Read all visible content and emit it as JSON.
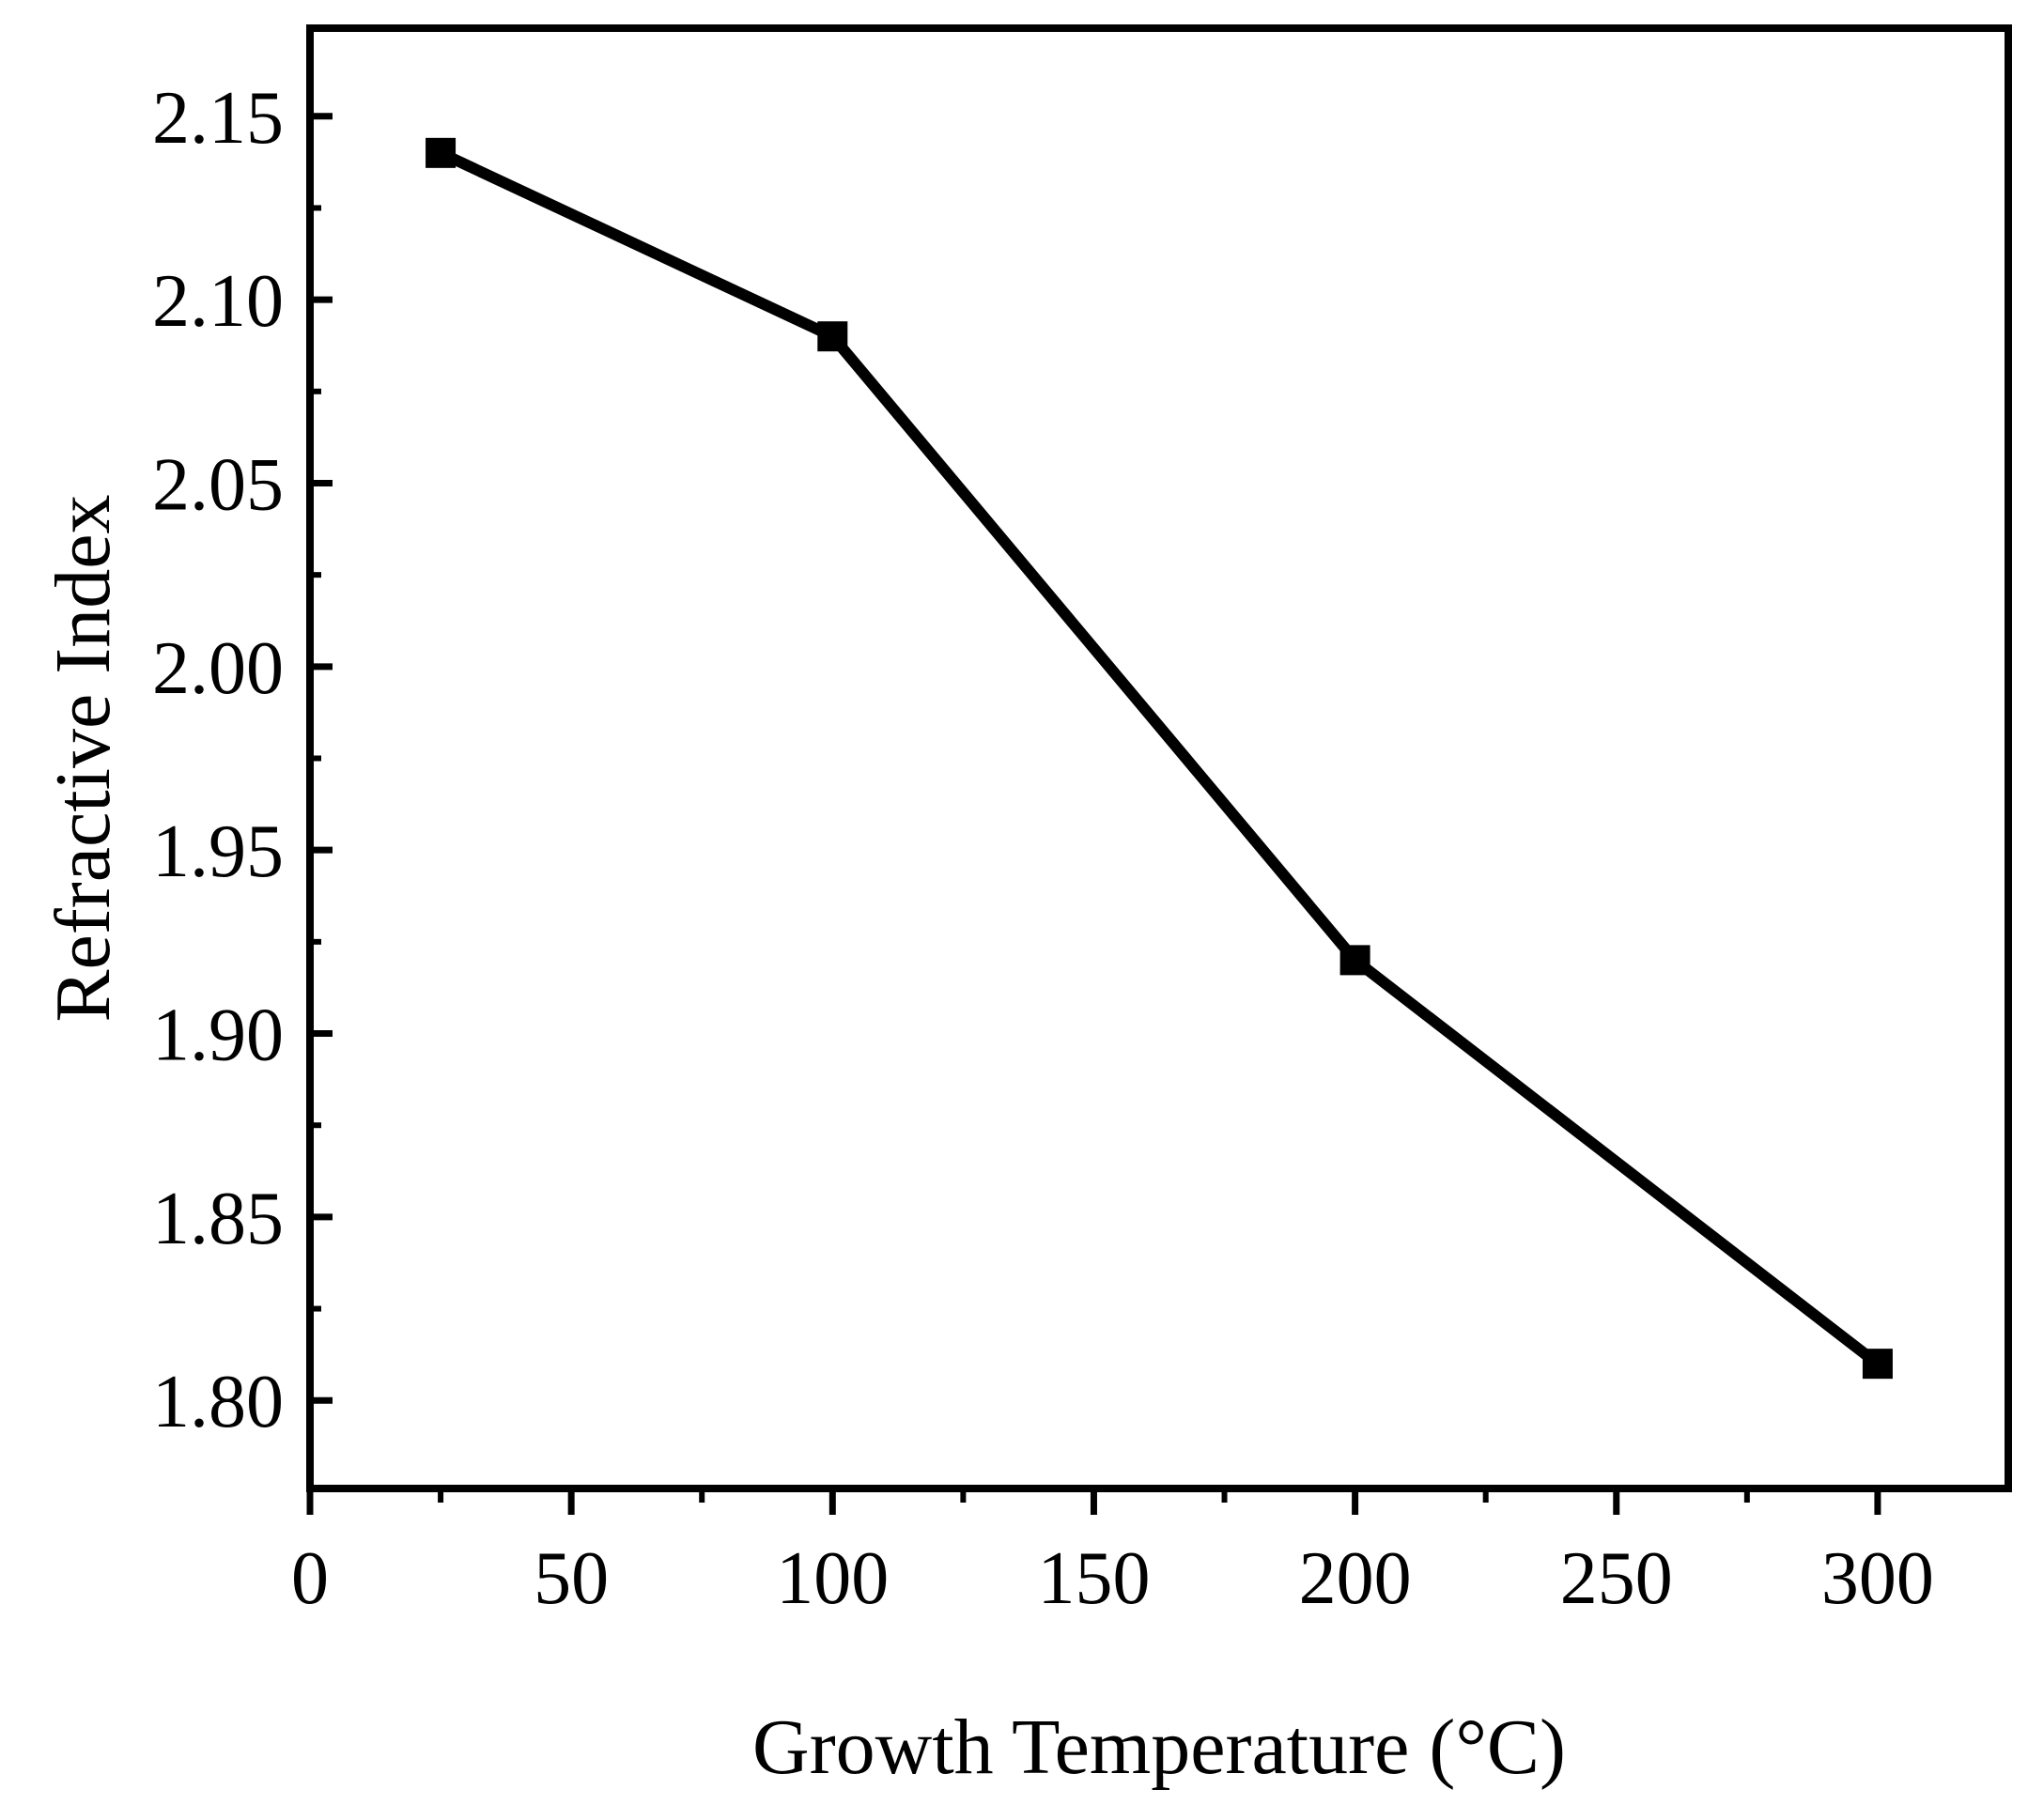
{
  "chart_data": {
    "type": "line",
    "title": "",
    "xlabel": "Growth Temperature (°C)",
    "ylabel": "Refractive Index",
    "xlim": [
      0,
      325
    ],
    "ylim": [
      1.776,
      2.174
    ],
    "x_ticks": [
      0,
      50,
      100,
      150,
      200,
      250,
      300
    ],
    "x_tick_labels": [
      "0",
      "50",
      "100",
      "150",
      "200",
      "250",
      "300"
    ],
    "y_ticks": [
      1.8,
      1.85,
      1.9,
      1.95,
      2.0,
      2.05,
      2.1,
      2.15
    ],
    "y_tick_labels": [
      "1.80",
      "1.85",
      "1.90",
      "1.95",
      "2.00",
      "2.05",
      "2.10",
      "2.15"
    ],
    "x_minor_ticks": [
      25,
      75,
      125,
      175,
      225,
      275
    ],
    "y_minor_ticks": [
      1.825,
      1.875,
      1.925,
      1.975,
      2.025,
      2.075,
      2.125
    ],
    "grid": false,
    "legend": "none",
    "series": [
      {
        "name": "Refractive Index",
        "marker": "square",
        "color": "#000000",
        "x": [
          25,
          100,
          200,
          300
        ],
        "values": [
          2.14,
          2.09,
          1.92,
          1.81
        ]
      }
    ]
  }
}
